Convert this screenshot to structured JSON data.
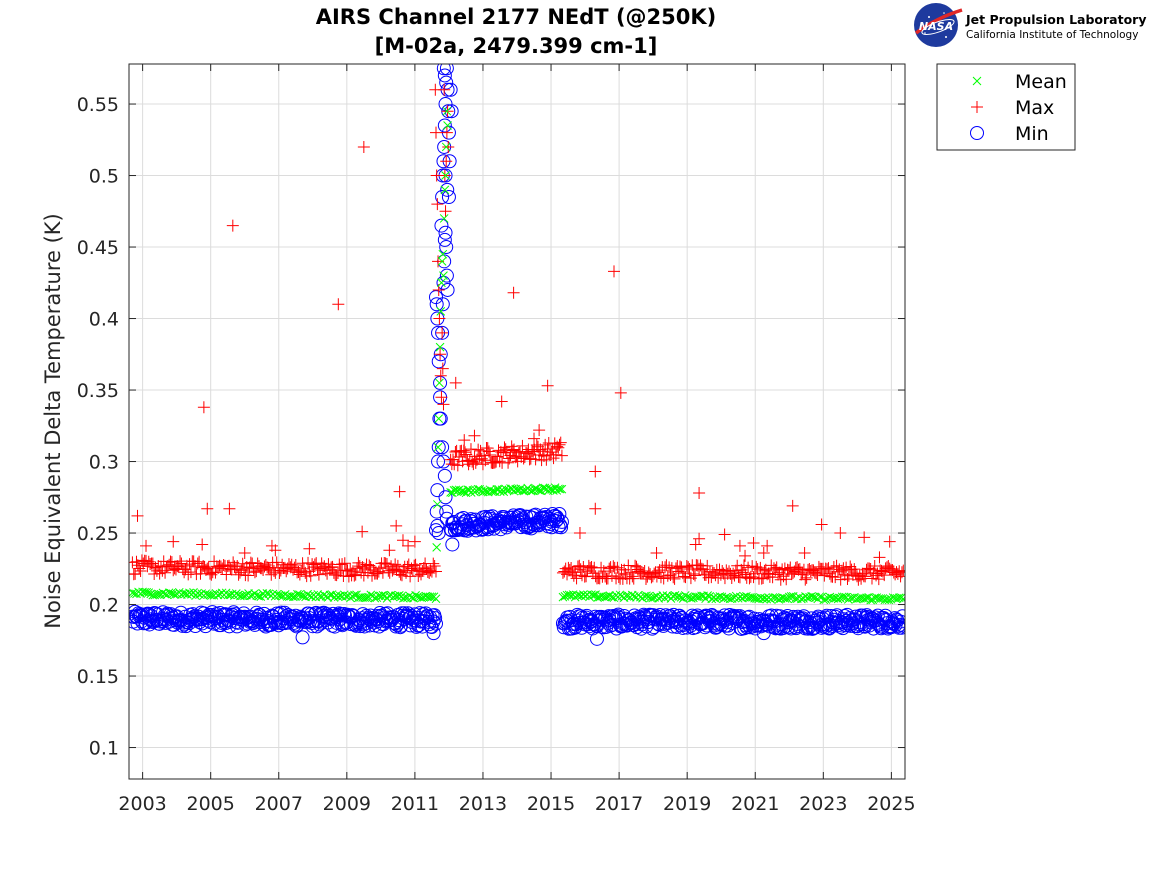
{
  "chart_data": {
    "type": "scatter",
    "title_lines": [
      "AIRS Channel 2177 NEdT (@250K)",
      "[M-02a, 2479.399 cm-1]"
    ],
    "xlabel": "",
    "ylabel": "Noise Equivalent Delta Temperature (K)",
    "xlim": [
      2002.6,
      2025.4
    ],
    "ylim": [
      0.078,
      0.578
    ],
    "x_ticks": [
      2003,
      2005,
      2007,
      2009,
      2011,
      2013,
      2015,
      2017,
      2019,
      2021,
      2023,
      2025
    ],
    "y_ticks": [
      0.1,
      0.15,
      0.2,
      0.25,
      0.3,
      0.35,
      0.4,
      0.45,
      0.5,
      0.55
    ],
    "y_tick_labels": [
      "0.1",
      "0.15",
      "0.2",
      "0.25",
      "0.3",
      "0.35",
      "0.4",
      "0.45",
      "0.5",
      "0.55"
    ],
    "grid": true,
    "legend_position": "outside-top-right",
    "series": [
      {
        "name": "Mean",
        "marker": "x",
        "color": "#00ff00",
        "segments": [
          {
            "x_start": 2002.7,
            "x_end": 2011.62,
            "y_start": 0.208,
            "y_end": 0.205,
            "step": 0.06
          },
          {
            "x_start": 2012.05,
            "x_end": 2015.32,
            "y_start": 0.279,
            "y_end": 0.281,
            "step": 0.05
          },
          {
            "x_start": 2015.35,
            "x_end": 2025.35,
            "y_start": 0.206,
            "y_end": 0.204,
            "step": 0.06
          }
        ],
        "points": [
          [
            2011.64,
            0.24
          ],
          [
            2011.66,
            0.27
          ],
          [
            2011.68,
            0.31
          ],
          [
            2011.7,
            0.33
          ],
          [
            2011.72,
            0.355
          ],
          [
            2011.74,
            0.38
          ],
          [
            2011.76,
            0.405
          ],
          [
            2011.78,
            0.425
          ],
          [
            2011.8,
            0.44
          ],
          [
            2011.82,
            0.445
          ],
          [
            2011.84,
            0.43
          ],
          [
            2011.86,
            0.47
          ],
          [
            2011.88,
            0.49
          ],
          [
            2011.9,
            0.5
          ],
          [
            2011.92,
            0.52
          ],
          [
            2011.94,
            0.545
          ],
          [
            2011.96,
            0.535
          ]
        ]
      },
      {
        "name": "Max",
        "marker": "+",
        "color": "#ff0000",
        "segments": [
          {
            "x_start": 2002.7,
            "x_end": 2011.62,
            "y_start": 0.226,
            "y_end": 0.224,
            "step": 0.04,
            "jitter": 0.005
          },
          {
            "x_start": 2012.05,
            "x_end": 2015.32,
            "y_start": 0.302,
            "y_end": 0.308,
            "step": 0.035,
            "jitter": 0.006
          },
          {
            "x_start": 2015.35,
            "x_end": 2025.35,
            "y_start": 0.223,
            "y_end": 0.222,
            "step": 0.04,
            "jitter": 0.005
          }
        ],
        "points": [
          [
            2002.85,
            0.262
          ],
          [
            2003.1,
            0.241
          ],
          [
            2003.9,
            0.244
          ],
          [
            2004.8,
            0.338
          ],
          [
            2004.9,
            0.267
          ],
          [
            2004.75,
            0.242
          ],
          [
            2005.55,
            0.267
          ],
          [
            2005.65,
            0.465
          ],
          [
            2006.0,
            0.236
          ],
          [
            2006.8,
            0.241
          ],
          [
            2006.9,
            0.238
          ],
          [
            2007.9,
            0.239
          ],
          [
            2008.75,
            0.41
          ],
          [
            2009.45,
            0.251
          ],
          [
            2009.5,
            0.52
          ],
          [
            2010.25,
            0.238
          ],
          [
            2010.45,
            0.255
          ],
          [
            2010.55,
            0.279
          ],
          [
            2010.65,
            0.245
          ],
          [
            2010.8,
            0.241
          ],
          [
            2011.0,
            0.244
          ],
          [
            2011.6,
            0.56
          ],
          [
            2011.62,
            0.53
          ],
          [
            2011.64,
            0.5
          ],
          [
            2011.66,
            0.48
          ],
          [
            2011.68,
            0.44
          ],
          [
            2011.7,
            0.42
          ],
          [
            2011.72,
            0.4
          ],
          [
            2011.74,
            0.375
          ],
          [
            2011.76,
            0.36
          ],
          [
            2011.78,
            0.345
          ],
          [
            2011.8,
            0.39
          ],
          [
            2011.82,
            0.365
          ],
          [
            2011.84,
            0.34
          ],
          [
            2011.86,
            0.56
          ],
          [
            2011.88,
            0.5
          ],
          [
            2011.9,
            0.475
          ],
          [
            2011.92,
            0.51
          ],
          [
            2011.94,
            0.53
          ],
          [
            2011.96,
            0.545
          ],
          [
            2011.98,
            0.52
          ],
          [
            2012.2,
            0.355
          ],
          [
            2012.45,
            0.315
          ],
          [
            2012.75,
            0.318
          ],
          [
            2013.55,
            0.342
          ],
          [
            2013.9,
            0.418
          ],
          [
            2014.5,
            0.316
          ],
          [
            2014.65,
            0.322
          ],
          [
            2014.9,
            0.353
          ],
          [
            2015.85,
            0.25
          ],
          [
            2016.3,
            0.293
          ],
          [
            2016.3,
            0.267
          ],
          [
            2016.85,
            0.433
          ],
          [
            2017.05,
            0.348
          ],
          [
            2018.1,
            0.236
          ],
          [
            2019.35,
            0.278
          ],
          [
            2019.35,
            0.246
          ],
          [
            2019.25,
            0.242
          ],
          [
            2020.1,
            0.249
          ],
          [
            2020.55,
            0.241
          ],
          [
            2020.7,
            0.234
          ],
          [
            2020.95,
            0.243
          ],
          [
            2021.35,
            0.241
          ],
          [
            2021.25,
            0.236
          ],
          [
            2022.1,
            0.269
          ],
          [
            2022.45,
            0.236
          ],
          [
            2022.95,
            0.256
          ],
          [
            2023.5,
            0.25
          ],
          [
            2024.2,
            0.247
          ],
          [
            2024.65,
            0.233
          ],
          [
            2024.95,
            0.244
          ]
        ]
      },
      {
        "name": "Min",
        "marker": "o",
        "color": "#0000ff",
        "segments": [
          {
            "x_start": 2002.7,
            "x_end": 2011.62,
            "y_start": 0.19,
            "y_end": 0.189,
            "step": 0.025,
            "jitter": 0.005
          },
          {
            "x_start": 2012.05,
            "x_end": 2015.32,
            "y_start": 0.256,
            "y_end": 0.259,
            "step": 0.025,
            "jitter": 0.005
          },
          {
            "x_start": 2015.35,
            "x_end": 2025.35,
            "y_start": 0.188,
            "y_end": 0.188,
            "step": 0.025,
            "jitter": 0.005
          }
        ],
        "points": [
          [
            2007.7,
            0.177
          ],
          [
            2011.55,
            0.18
          ],
          [
            2016.35,
            0.176
          ],
          [
            2021.25,
            0.18
          ],
          [
            2012.1,
            0.242
          ],
          [
            2011.62,
            0.252
          ],
          [
            2011.64,
            0.265
          ],
          [
            2011.66,
            0.28
          ],
          [
            2011.68,
            0.3
          ],
          [
            2011.7,
            0.31
          ],
          [
            2011.72,
            0.33
          ],
          [
            2011.74,
            0.355
          ],
          [
            2011.76,
            0.375
          ],
          [
            2011.62,
            0.415
          ],
          [
            2011.64,
            0.41
          ],
          [
            2011.66,
            0.4
          ],
          [
            2011.68,
            0.39
          ],
          [
            2011.7,
            0.37
          ],
          [
            2011.74,
            0.345
          ],
          [
            2011.8,
            0.39
          ],
          [
            2011.82,
            0.41
          ],
          [
            2011.84,
            0.425
          ],
          [
            2011.86,
            0.44
          ],
          [
            2011.88,
            0.455
          ],
          [
            2011.9,
            0.46
          ],
          [
            2011.92,
            0.45
          ],
          [
            2011.94,
            0.43
          ],
          [
            2011.96,
            0.42
          ],
          [
            2011.78,
            0.465
          ],
          [
            2011.8,
            0.485
          ],
          [
            2011.82,
            0.5
          ],
          [
            2011.84,
            0.51
          ],
          [
            2011.86,
            0.52
          ],
          [
            2011.88,
            0.535
          ],
          [
            2011.9,
            0.55
          ],
          [
            2011.92,
            0.565
          ],
          [
            2011.94,
            0.575
          ],
          [
            2011.96,
            0.56
          ],
          [
            2011.98,
            0.545
          ],
          [
            2012.0,
            0.53
          ],
          [
            2012.02,
            0.51
          ],
          [
            2011.9,
            0.5
          ],
          [
            2011.95,
            0.49
          ],
          [
            2012.0,
            0.485
          ],
          [
            2011.85,
            0.575
          ],
          [
            2011.88,
            0.57
          ],
          [
            2012.05,
            0.56
          ],
          [
            2012.08,
            0.545
          ],
          [
            2011.76,
            0.33
          ],
          [
            2011.8,
            0.31
          ],
          [
            2011.84,
            0.3
          ],
          [
            2011.88,
            0.29
          ],
          [
            2011.9,
            0.275
          ],
          [
            2011.92,
            0.265
          ],
          [
            2011.94,
            0.26
          ],
          [
            2011.7,
            0.25
          ],
          [
            2011.66,
            0.255
          ]
        ]
      }
    ]
  },
  "logo": {
    "agency": "NASA",
    "title": "Jet Propulsion Laboratory",
    "subtitle": "California Institute of Technology"
  }
}
